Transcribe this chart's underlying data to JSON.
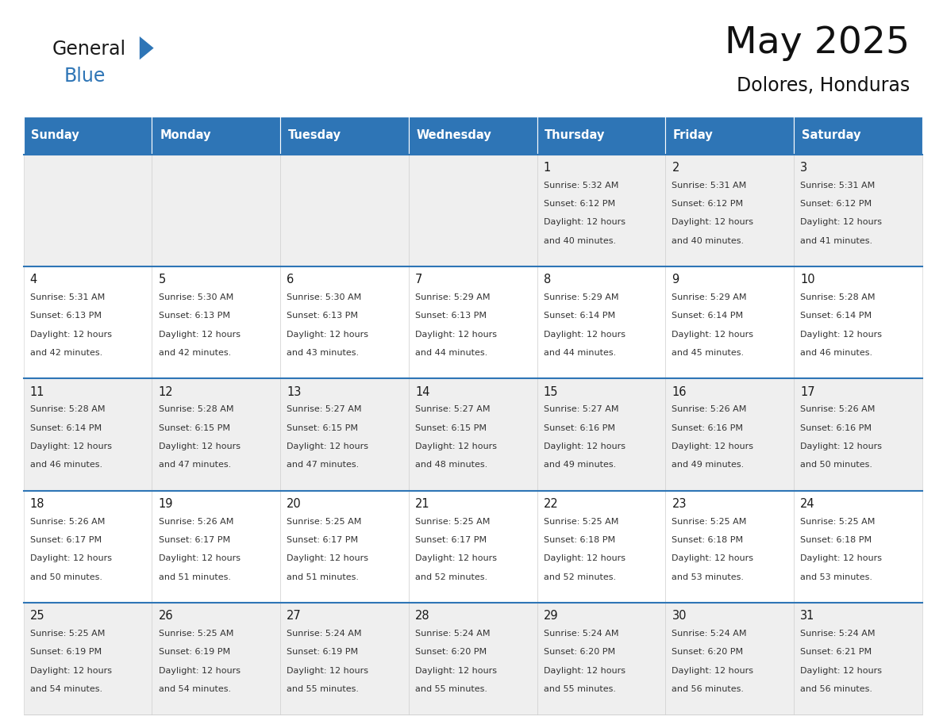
{
  "title": "May 2025",
  "subtitle": "Dolores, Honduras",
  "header_color": "#2E75B6",
  "header_text_color": "#FFFFFF",
  "cell_bg_even": "#EFEFEF",
  "cell_bg_odd": "#FFFFFF",
  "separator_color": "#2E75B6",
  "border_color": "#AAAAAA",
  "day_names": [
    "Sunday",
    "Monday",
    "Tuesday",
    "Wednesday",
    "Thursday",
    "Friday",
    "Saturday"
  ],
  "text_color": "#333333",
  "logo_general_color": "#1a1a1a",
  "logo_blue_color": "#2E75B6",
  "logo_triangle_color": "#2E75B6",
  "weeks": [
    [
      {
        "day": "",
        "sunrise": "",
        "sunset": "",
        "daylight": ""
      },
      {
        "day": "",
        "sunrise": "",
        "sunset": "",
        "daylight": ""
      },
      {
        "day": "",
        "sunrise": "",
        "sunset": "",
        "daylight": ""
      },
      {
        "day": "",
        "sunrise": "",
        "sunset": "",
        "daylight": ""
      },
      {
        "day": "1",
        "sunrise": "5:32 AM",
        "sunset": "6:12 PM",
        "daylight": "12 hours and 40 minutes."
      },
      {
        "day": "2",
        "sunrise": "5:31 AM",
        "sunset": "6:12 PM",
        "daylight": "12 hours and 40 minutes."
      },
      {
        "day": "3",
        "sunrise": "5:31 AM",
        "sunset": "6:12 PM",
        "daylight": "12 hours and 41 minutes."
      }
    ],
    [
      {
        "day": "4",
        "sunrise": "5:31 AM",
        "sunset": "6:13 PM",
        "daylight": "12 hours and 42 minutes."
      },
      {
        "day": "5",
        "sunrise": "5:30 AM",
        "sunset": "6:13 PM",
        "daylight": "12 hours and 42 minutes."
      },
      {
        "day": "6",
        "sunrise": "5:30 AM",
        "sunset": "6:13 PM",
        "daylight": "12 hours and 43 minutes."
      },
      {
        "day": "7",
        "sunrise": "5:29 AM",
        "sunset": "6:13 PM",
        "daylight": "12 hours and 44 minutes."
      },
      {
        "day": "8",
        "sunrise": "5:29 AM",
        "sunset": "6:14 PM",
        "daylight": "12 hours and 44 minutes."
      },
      {
        "day": "9",
        "sunrise": "5:29 AM",
        "sunset": "6:14 PM",
        "daylight": "12 hours and 45 minutes."
      },
      {
        "day": "10",
        "sunrise": "5:28 AM",
        "sunset": "6:14 PM",
        "daylight": "12 hours and 46 minutes."
      }
    ],
    [
      {
        "day": "11",
        "sunrise": "5:28 AM",
        "sunset": "6:14 PM",
        "daylight": "12 hours and 46 minutes."
      },
      {
        "day": "12",
        "sunrise": "5:28 AM",
        "sunset": "6:15 PM",
        "daylight": "12 hours and 47 minutes."
      },
      {
        "day": "13",
        "sunrise": "5:27 AM",
        "sunset": "6:15 PM",
        "daylight": "12 hours and 47 minutes."
      },
      {
        "day": "14",
        "sunrise": "5:27 AM",
        "sunset": "6:15 PM",
        "daylight": "12 hours and 48 minutes."
      },
      {
        "day": "15",
        "sunrise": "5:27 AM",
        "sunset": "6:16 PM",
        "daylight": "12 hours and 49 minutes."
      },
      {
        "day": "16",
        "sunrise": "5:26 AM",
        "sunset": "6:16 PM",
        "daylight": "12 hours and 49 minutes."
      },
      {
        "day": "17",
        "sunrise": "5:26 AM",
        "sunset": "6:16 PM",
        "daylight": "12 hours and 50 minutes."
      }
    ],
    [
      {
        "day": "18",
        "sunrise": "5:26 AM",
        "sunset": "6:17 PM",
        "daylight": "12 hours and 50 minutes."
      },
      {
        "day": "19",
        "sunrise": "5:26 AM",
        "sunset": "6:17 PM",
        "daylight": "12 hours and 51 minutes."
      },
      {
        "day": "20",
        "sunrise": "5:25 AM",
        "sunset": "6:17 PM",
        "daylight": "12 hours and 51 minutes."
      },
      {
        "day": "21",
        "sunrise": "5:25 AM",
        "sunset": "6:17 PM",
        "daylight": "12 hours and 52 minutes."
      },
      {
        "day": "22",
        "sunrise": "5:25 AM",
        "sunset": "6:18 PM",
        "daylight": "12 hours and 52 minutes."
      },
      {
        "day": "23",
        "sunrise": "5:25 AM",
        "sunset": "6:18 PM",
        "daylight": "12 hours and 53 minutes."
      },
      {
        "day": "24",
        "sunrise": "5:25 AM",
        "sunset": "6:18 PM",
        "daylight": "12 hours and 53 minutes."
      }
    ],
    [
      {
        "day": "25",
        "sunrise": "5:25 AM",
        "sunset": "6:19 PM",
        "daylight": "12 hours and 54 minutes."
      },
      {
        "day": "26",
        "sunrise": "5:25 AM",
        "sunset": "6:19 PM",
        "daylight": "12 hours and 54 minutes."
      },
      {
        "day": "27",
        "sunrise": "5:24 AM",
        "sunset": "6:19 PM",
        "daylight": "12 hours and 55 minutes."
      },
      {
        "day": "28",
        "sunrise": "5:24 AM",
        "sunset": "6:20 PM",
        "daylight": "12 hours and 55 minutes."
      },
      {
        "day": "29",
        "sunrise": "5:24 AM",
        "sunset": "6:20 PM",
        "daylight": "12 hours and 55 minutes."
      },
      {
        "day": "30",
        "sunrise": "5:24 AM",
        "sunset": "6:20 PM",
        "daylight": "12 hours and 56 minutes."
      },
      {
        "day": "31",
        "sunrise": "5:24 AM",
        "sunset": "6:21 PM",
        "daylight": "12 hours and 56 minutes."
      }
    ]
  ]
}
